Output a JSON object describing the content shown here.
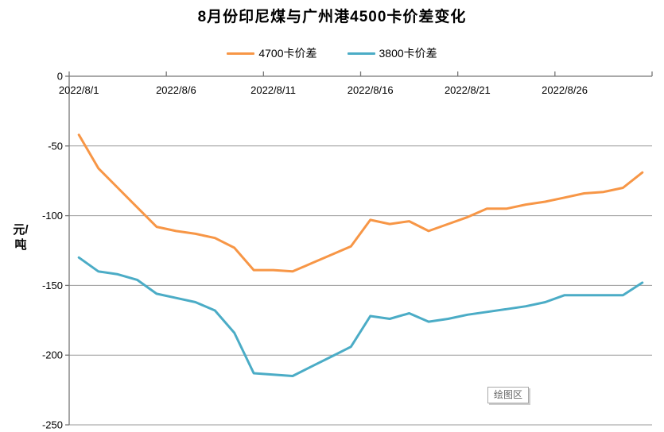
{
  "plot_area_label": "绘图区",
  "chart_data": {
    "type": "line",
    "title": "8月份印尼煤与广州港4500卡价差变化",
    "ylabel": "元/吨",
    "xlabel": "",
    "ylim": [
      -250,
      0
    ],
    "y_ticks": [
      0,
      -50,
      -100,
      -150,
      -200,
      -250
    ],
    "grid": "horizontal",
    "legend_position": "top",
    "x": [
      "2022/8/1",
      "2022/8/2",
      "2022/8/3",
      "2022/8/4",
      "2022/8/5",
      "2022/8/6",
      "2022/8/7",
      "2022/8/8",
      "2022/8/9",
      "2022/8/10",
      "2022/8/11",
      "2022/8/12",
      "2022/8/13",
      "2022/8/14",
      "2022/8/15",
      "2022/8/16",
      "2022/8/17",
      "2022/8/18",
      "2022/8/19",
      "2022/8/20",
      "2022/8/21",
      "2022/8/22",
      "2022/8/23",
      "2022/8/24",
      "2022/8/25",
      "2022/8/26",
      "2022/8/27",
      "2022/8/28",
      "2022/8/29",
      "2022/8/30"
    ],
    "x_tick_labels": [
      "2022/8/1",
      "2022/8/6",
      "2022/8/11",
      "2022/8/16",
      "2022/8/21",
      "2022/8/26"
    ],
    "series": [
      {
        "name": "4700卡价差",
        "color": "#F79646",
        "values": [
          -42,
          -66,
          -80,
          -94,
          -108,
          -111,
          -113,
          -116,
          -123,
          -139,
          -139,
          -140,
          -134,
          -128,
          -122,
          -103,
          -106,
          -104,
          -111,
          -106,
          -101,
          -95,
          -95,
          -92,
          -90,
          -87,
          -84,
          -83,
          -80,
          -69
        ]
      },
      {
        "name": "3800卡价差",
        "color": "#4BACC6",
        "values": [
          -130,
          -140,
          -142,
          -146,
          -156,
          -159,
          -162,
          -168,
          -184,
          -213,
          -214,
          -215,
          -208,
          -201,
          -194,
          -172,
          -174,
          -170,
          -176,
          -174,
          -171,
          -169,
          -167,
          -165,
          -162,
          -157,
          -157,
          -157,
          -157,
          -148
        ]
      }
    ],
    "colors": {
      "gridline": "#9A9A9A",
      "axis": "#767676",
      "text": "#000000",
      "tooltip_text": "#666666"
    }
  }
}
